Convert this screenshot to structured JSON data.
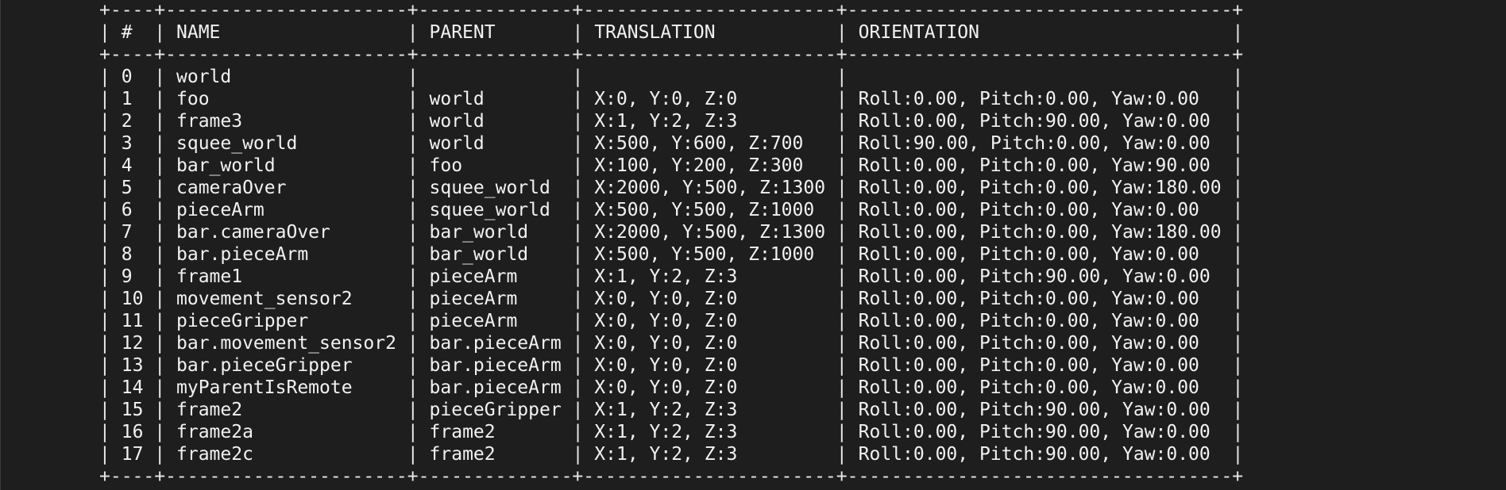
{
  "table": {
    "columns": [
      {
        "label": "#",
        "width": 4
      },
      {
        "label": "NAME",
        "width": 22
      },
      {
        "label": "PARENT",
        "width": 14
      },
      {
        "label": "TRANSLATION",
        "width": 23
      },
      {
        "label": "ORIENTATION",
        "width": 35
      }
    ],
    "rows": [
      [
        "0",
        "world",
        "",
        "",
        ""
      ],
      [
        "1",
        "foo",
        "world",
        "X:0, Y:0, Z:0",
        "Roll:0.00, Pitch:0.00, Yaw:0.00"
      ],
      [
        "2",
        "frame3",
        "world",
        "X:1, Y:2, Z:3",
        "Roll:0.00, Pitch:90.00, Yaw:0.00"
      ],
      [
        "3",
        "squee_world",
        "world",
        "X:500, Y:600, Z:700",
        "Roll:90.00, Pitch:0.00, Yaw:0.00"
      ],
      [
        "4",
        "bar_world",
        "foo",
        "X:100, Y:200, Z:300",
        "Roll:0.00, Pitch:0.00, Yaw:90.00"
      ],
      [
        "5",
        "cameraOver",
        "squee_world",
        "X:2000, Y:500, Z:1300",
        "Roll:0.00, Pitch:0.00, Yaw:180.00"
      ],
      [
        "6",
        "pieceArm",
        "squee_world",
        "X:500, Y:500, Z:1000",
        "Roll:0.00, Pitch:0.00, Yaw:0.00"
      ],
      [
        "7",
        "bar.cameraOver",
        "bar_world",
        "X:2000, Y:500, Z:1300",
        "Roll:0.00, Pitch:0.00, Yaw:180.00"
      ],
      [
        "8",
        "bar.pieceArm",
        "bar_world",
        "X:500, Y:500, Z:1000",
        "Roll:0.00, Pitch:0.00, Yaw:0.00"
      ],
      [
        "9",
        "frame1",
        "pieceArm",
        "X:1, Y:2, Z:3",
        "Roll:0.00, Pitch:90.00, Yaw:0.00"
      ],
      [
        "10",
        "movement_sensor2",
        "pieceArm",
        "X:0, Y:0, Z:0",
        "Roll:0.00, Pitch:0.00, Yaw:0.00"
      ],
      [
        "11",
        "pieceGripper",
        "pieceArm",
        "X:0, Y:0, Z:0",
        "Roll:0.00, Pitch:0.00, Yaw:0.00"
      ],
      [
        "12",
        "bar.movement_sensor2",
        "bar.pieceArm",
        "X:0, Y:0, Z:0",
        "Roll:0.00, Pitch:0.00, Yaw:0.00"
      ],
      [
        "13",
        "bar.pieceGripper",
        "bar.pieceArm",
        "X:0, Y:0, Z:0",
        "Roll:0.00, Pitch:0.00, Yaw:0.00"
      ],
      [
        "14",
        "myParentIsRemote",
        "bar.pieceArm",
        "X:0, Y:0, Z:0",
        "Roll:0.00, Pitch:0.00, Yaw:0.00"
      ],
      [
        "15",
        "frame2",
        "pieceGripper",
        "X:1, Y:2, Z:3",
        "Roll:0.00, Pitch:90.00, Yaw:0.00"
      ],
      [
        "16",
        "frame2a",
        "frame2",
        "X:1, Y:2, Z:3",
        "Roll:0.00, Pitch:90.00, Yaw:0.00"
      ],
      [
        "17",
        "frame2c",
        "frame2",
        "X:1, Y:2, Z:3",
        "Roll:0.00, Pitch:90.00, Yaw:0.00"
      ]
    ]
  }
}
